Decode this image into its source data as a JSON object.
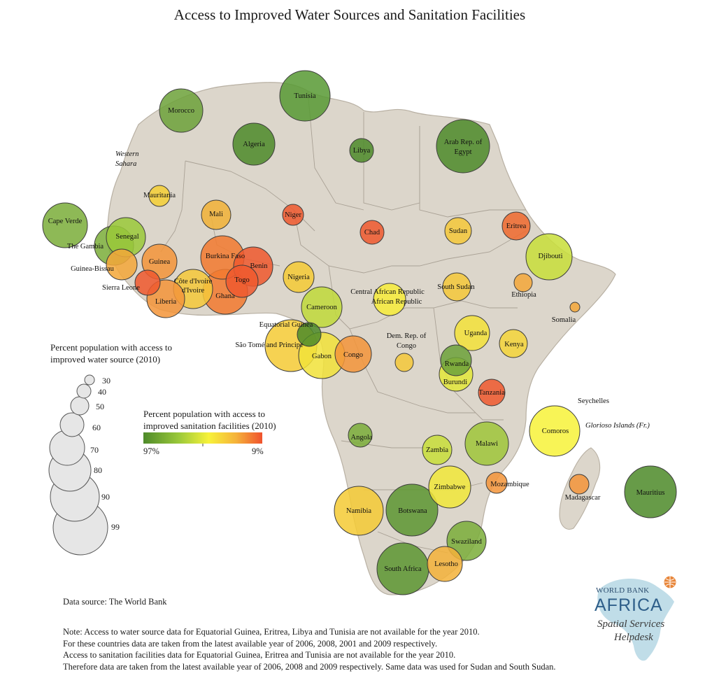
{
  "title": "Access to Improved Water Sources and Sanitation Facilities",
  "legend": {
    "size_title_1": "Percent population with access to",
    "size_title_2": "improved water source (2010)",
    "size_values": [
      "30",
      "40",
      "50",
      "60",
      "70",
      "80",
      "90",
      "99"
    ],
    "color_title_1": "Percent population with access to",
    "color_title_2": "improved sanitation facilities (2010)",
    "color_low": "97%",
    "color_high": "9%",
    "gradient_colors": [
      "#4e8a2a",
      "#9bc93a",
      "#f7f23a",
      "#f5b23a",
      "#f0522d"
    ]
  },
  "region_labels": {
    "western_sahara_1": "Western",
    "western_sahara_2": "Sahara",
    "seychelles": "Seychelles",
    "glorioso": "Glorioso Islands (Fr.)"
  },
  "countries": [
    {
      "name": "Morocco",
      "color": "#6ea23a"
    },
    {
      "name": "Tunisia",
      "color": "#589a34"
    },
    {
      "name": "Algeria",
      "color": "#4e8a2a"
    },
    {
      "name": "Libya",
      "color": "#4e8a2a"
    },
    {
      "name": "Arab Rep. of",
      "color": "#4e8a2a"
    },
    {
      "name": "Mauritania",
      "color": "#f4cf36"
    },
    {
      "name": "Mali",
      "color": "#f1b238"
    },
    {
      "name": "Niger",
      "color": "#ef5a2e"
    },
    {
      "name": "Chad",
      "color": "#ef5a2e"
    },
    {
      "name": "Sudan",
      "color": "#f5c83a"
    },
    {
      "name": "Eritrea",
      "color": "#ef6a2f"
    },
    {
      "name": "Cape Verde",
      "color": "#7cad3a"
    },
    {
      "name": "The Gambia",
      "color": "#7cad3a"
    },
    {
      "name": "Senegal",
      "color": "#9bc93a"
    },
    {
      "name": "Guinea-Bissau",
      "color": "#f3a83a"
    },
    {
      "name": "Guinea",
      "color": "#f3953a"
    },
    {
      "name": "Burkina Faso",
      "color": "#f27a30"
    },
    {
      "name": "Benin",
      "color": "#ef5a2e"
    },
    {
      "name": "Nigeria",
      "color": "#f5cb36"
    },
    {
      "name": "Djibouti",
      "color": "#c8de3a"
    },
    {
      "name": "Sierra Leone",
      "color": "#ef5a2e"
    },
    {
      "name": "Liberia",
      "color": "#f3953a"
    },
    {
      "name": "Côte d'Ivoire",
      "color": "#f5c83a"
    },
    {
      "name": "Ghana",
      "color": "#f27a30"
    },
    {
      "name": "Togo",
      "color": "#ef5a2e"
    },
    {
      "name": "Cameroon",
      "color": "#c0da3a"
    },
    {
      "name": "Central African Republic",
      "color": "#f7ec3a"
    },
    {
      "name": "South Sudan",
      "color": "#f5c83a"
    },
    {
      "name": "Ethiopia",
      "color": "#f3a83a"
    },
    {
      "name": "Somalia",
      "color": "#f3a83a"
    },
    {
      "name": "Equatorial Guinea",
      "color": "#4e8a2a"
    },
    {
      "name": "São Tomé and Principe",
      "color": "#f5cb36"
    },
    {
      "name": "Gabon",
      "color": "#f1e23a"
    },
    {
      "name": "Congo",
      "color": "#f3953a"
    },
    {
      "name": "Dem. Rep. of",
      "color": "#f5c83a"
    },
    {
      "name": "Uganda",
      "color": "#f3e23a"
    },
    {
      "name": "Kenya",
      "color": "#f5d53a"
    },
    {
      "name": "Rwanda",
      "color": "#6ea23a"
    },
    {
      "name": "Burundi",
      "color": "#e3e83a"
    },
    {
      "name": "Tanzania",
      "color": "#ef5a2e"
    },
    {
      "name": "Comoros",
      "color": "#f7f23a"
    },
    {
      "name": "Angola",
      "color": "#7cad3a"
    },
    {
      "name": "Zambia",
      "color": "#c8de3a"
    },
    {
      "name": "Malawi",
      "color": "#a0c63a"
    },
    {
      "name": "Zimbabwe",
      "color": "#f1e83a"
    },
    {
      "name": "Mozambique",
      "color": "#f3953a"
    },
    {
      "name": "Madagascar",
      "color": "#f3953a"
    },
    {
      "name": "Mauritius",
      "color": "#4e8a2a"
    },
    {
      "name": "Namibia",
      "color": "#f5cb36"
    },
    {
      "name": "Botswana",
      "color": "#5d9632"
    },
    {
      "name": "Swaziland",
      "color": "#7cad3a"
    },
    {
      "name": "South Africa",
      "color": "#5d9632"
    },
    {
      "name": "Lesotho",
      "color": "#f3b23a"
    }
  ],
  "extra_lines": {
    "egypt_2": "Egypt",
    "cote_2": "d'Ivoire",
    "car_2": "African Republic",
    "drc_2": "Congo"
  },
  "source": "Data source: The World Bank",
  "notes": [
    "Note: Access to water source data for Equatorial Guinea, Eritrea, Libya and Tunisia are not available for the year 2010.",
    "For these countries data are taken from the latest available year of 2006, 2008, 2001 and 2009 respectively.",
    "Access to sanitation facilities data for Equatorial Guinea, Eritrea and Tunisia are not available for the year 2010.",
    "Therefore data are taken from the latest available year of 2006, 2008 and 2009 respectively. Same data was used for Sudan and South Sudan."
  ],
  "logo": {
    "line1": "WORLD BANK",
    "line2": "AFRICA",
    "line3": "Spatial Services",
    "line4": "Helpdesk"
  }
}
